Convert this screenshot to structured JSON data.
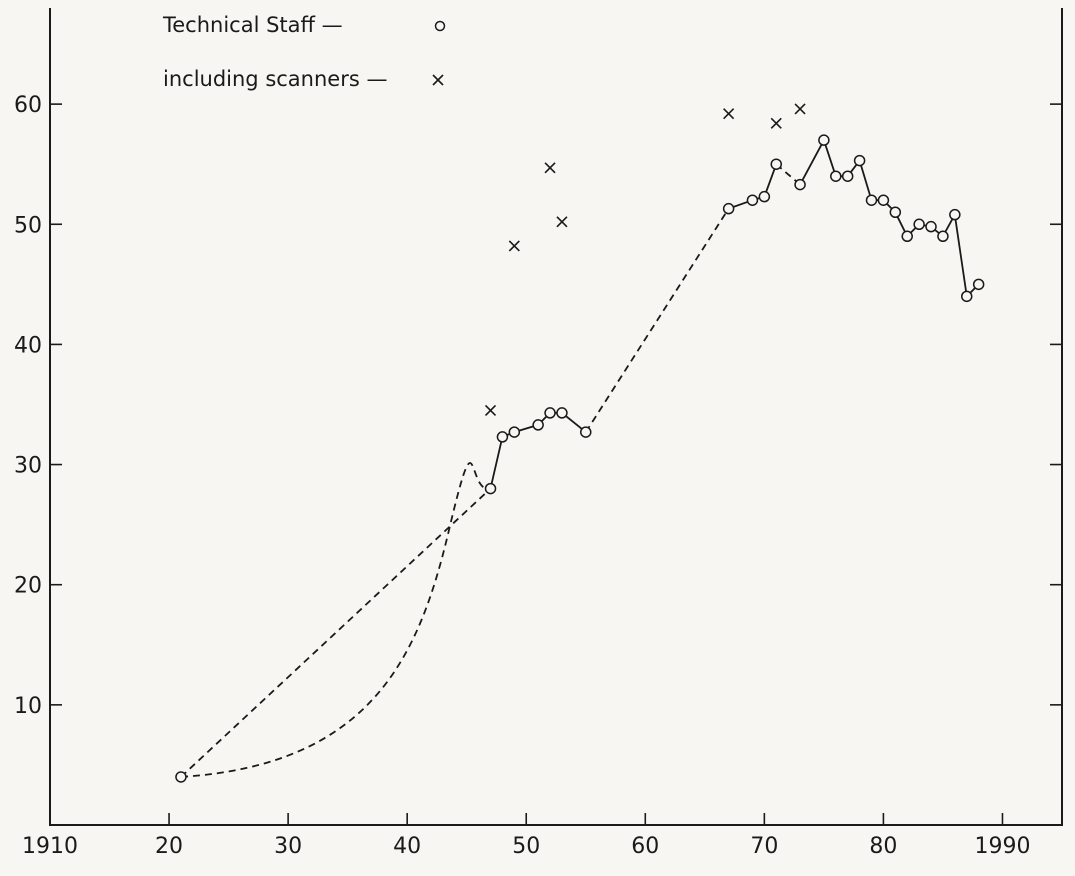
{
  "chart_data": {
    "type": "line",
    "title": "",
    "xlabel": "",
    "ylabel": "",
    "xlim": [
      1910,
      1995
    ],
    "ylim": [
      0,
      68
    ],
    "x_ticks": [
      1910,
      1920,
      1930,
      1940,
      1950,
      1960,
      1970,
      1980,
      1990
    ],
    "x_tick_labels": [
      "1910",
      "20",
      "30",
      "40",
      "50",
      "60",
      "70",
      "80",
      "1990"
    ],
    "y_ticks": [
      10,
      20,
      30,
      40,
      50,
      60
    ],
    "y_tick_labels": [
      "10",
      "20",
      "30",
      "40",
      "50",
      "60"
    ],
    "grid": false,
    "legend": {
      "position": "top-left",
      "entries": [
        {
          "label": "Technical Staff —",
          "marker": "o"
        },
        {
          "label": "including scanners —",
          "marker": "x"
        }
      ]
    },
    "series": [
      {
        "name": "Technical Staff",
        "marker": "o",
        "x": [
          1921,
          1947,
          1948,
          1949,
          1951,
          1952,
          1953,
          1955,
          1967,
          1969,
          1970,
          1971,
          1973,
          1975,
          1976,
          1977,
          1978,
          1979,
          1980,
          1981,
          1982,
          1983,
          1984,
          1985,
          1986,
          1987,
          1988
        ],
        "y": [
          4,
          28,
          32.3,
          32.7,
          33.3,
          34.3,
          34.3,
          32.7,
          51.3,
          52,
          52.3,
          55,
          53.3,
          57,
          54,
          54,
          55.3,
          52,
          52,
          51,
          49,
          50,
          49.8,
          49,
          50.8,
          44,
          45
        ],
        "segments": [
          {
            "from": 1921,
            "to": 1947,
            "style": "dashed"
          },
          {
            "from": 1947,
            "to": 1955,
            "style": "solid"
          },
          {
            "from": 1955,
            "to": 1967,
            "style": "dashed"
          },
          {
            "from": 1967,
            "to": 1971,
            "style": "solid"
          },
          {
            "from": 1971,
            "to": 1973,
            "style": "dashed"
          },
          {
            "from": 1973,
            "to": 1988,
            "style": "solid"
          }
        ]
      },
      {
        "name": "including scanners",
        "marker": "x",
        "x": [
          1947,
          1949,
          1952,
          1953,
          1967,
          1971,
          1973
        ],
        "y": [
          34.5,
          48.2,
          54.7,
          50.2,
          59.2,
          58.4,
          59.6
        ]
      }
    ],
    "annotations": [
      {
        "type": "dashed-curve",
        "from": [
          1921,
          4
        ],
        "to": [
          1947,
          28
        ],
        "note": "lower bowed alternative curve"
      }
    ]
  }
}
